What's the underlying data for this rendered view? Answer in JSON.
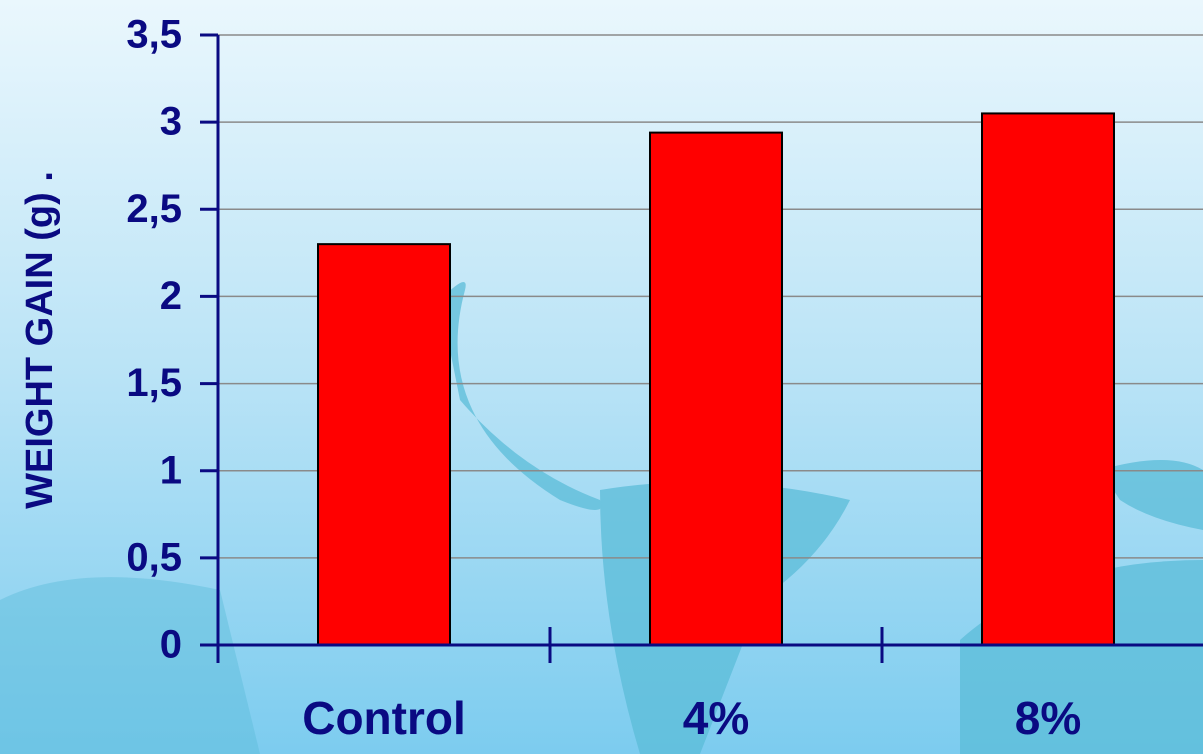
{
  "chart_data": {
    "type": "bar",
    "y_axis_label": "WEIGHT GAIN (g) .",
    "categories": [
      "Control",
      "4%",
      "8%"
    ],
    "values": [
      2.3,
      2.94,
      3.05
    ],
    "color": "#ff0000",
    "ylim": [
      0,
      3.5
    ],
    "yticks": [
      0,
      {
        "value": 0.5,
        "label": "0,5"
      },
      1,
      {
        "value": 1.5,
        "label": "1,5"
      },
      2,
      {
        "value": 2.5,
        "label": "2,5"
      },
      3,
      {
        "value": 3.5,
        "label": "3,5"
      }
    ],
    "grid": true
  }
}
